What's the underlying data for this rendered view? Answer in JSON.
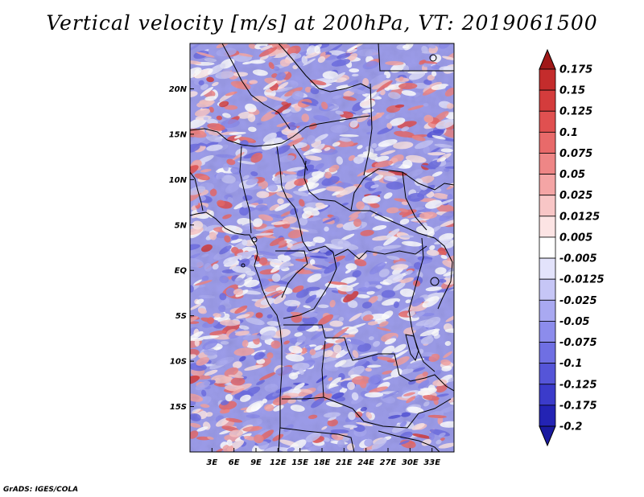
{
  "title": "Vertical velocity [m/s] at 200hPa, VT: 2019061500",
  "credit": "GrADS: IGES/COLA",
  "map": {
    "lon_range": [
      0,
      36
    ],
    "lat_range": [
      -20,
      25
    ],
    "lat_ticks": [
      {
        "value": 20,
        "label": "20N"
      },
      {
        "value": 15,
        "label": "15N"
      },
      {
        "value": 10,
        "label": "10N"
      },
      {
        "value": 5,
        "label": "5N"
      },
      {
        "value": 0,
        "label": "EQ"
      },
      {
        "value": -5,
        "label": "5S"
      },
      {
        "value": -10,
        "label": "10S"
      },
      {
        "value": -15,
        "label": "15S"
      }
    ],
    "lon_ticks": [
      {
        "value": 3,
        "label": "3E"
      },
      {
        "value": 6,
        "label": "6E"
      },
      {
        "value": 9,
        "label": "9E"
      },
      {
        "value": 12,
        "label": "12E"
      },
      {
        "value": 15,
        "label": "15E"
      },
      {
        "value": 18,
        "label": "18E"
      },
      {
        "value": 21,
        "label": "21E"
      },
      {
        "value": 24,
        "label": "24E"
      },
      {
        "value": 27,
        "label": "27E"
      },
      {
        "value": 30,
        "label": "30E"
      },
      {
        "value": 33,
        "label": "33E"
      }
    ]
  },
  "colorbar": {
    "levels": [
      {
        "label": "0.175",
        "color": "#b21f1f"
      },
      {
        "label": "0.15",
        "color": "#c42c2c"
      },
      {
        "label": "0.125",
        "color": "#d43c3c"
      },
      {
        "label": "0.1",
        "color": "#e05050"
      },
      {
        "label": "0.075",
        "color": "#e86a6a"
      },
      {
        "label": "0.05",
        "color": "#ee8686"
      },
      {
        "label": "0.025",
        "color": "#f4a5a5"
      },
      {
        "label": "0.0125",
        "color": "#f8c6c6"
      },
      {
        "label": "0.005",
        "color": "#fce4e4"
      },
      {
        "label": "-0.005",
        "color": "#ffffff"
      },
      {
        "label": "-0.0125",
        "color": "#e3e3fb"
      },
      {
        "label": "-0.025",
        "color": "#c6c6f6"
      },
      {
        "label": "-0.05",
        "color": "#a9a9f1"
      },
      {
        "label": "-0.075",
        "color": "#8c8cec"
      },
      {
        "label": "-0.1",
        "color": "#6f6fe3"
      },
      {
        "label": "-0.125",
        "color": "#5555d8"
      },
      {
        "label": "-0.175",
        "color": "#3b3bca"
      },
      {
        "label": "-0.2",
        "color": "#2323b4"
      }
    ],
    "top_arrow_color": "#a01818",
    "bottom_arrow_color": "#1a1aa0"
  }
}
